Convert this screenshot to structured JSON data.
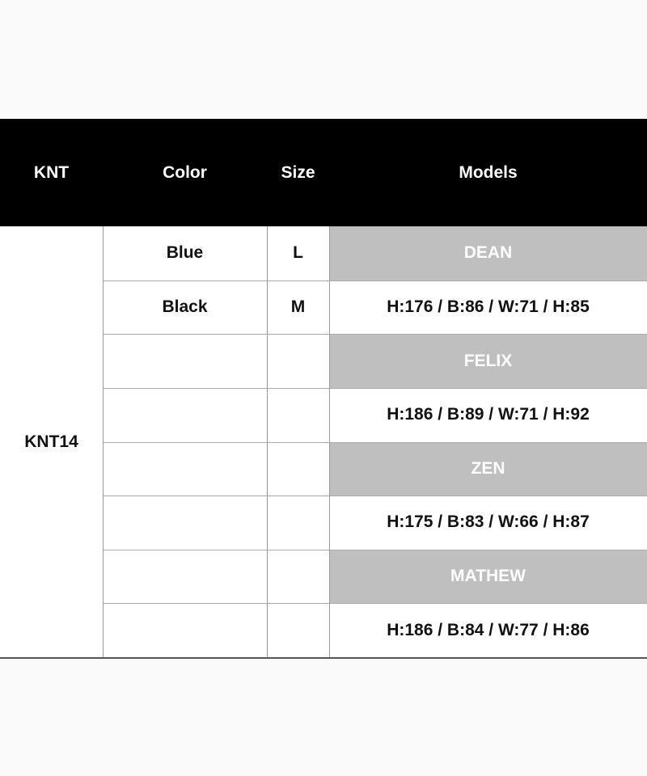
{
  "header": {
    "col1": "KNT",
    "col2": "Color",
    "col3": "Size",
    "col4": "Models"
  },
  "product_code": "KNT14",
  "variants": [
    {
      "color": "Blue",
      "size": "L"
    },
    {
      "color": "Black",
      "size": "M"
    }
  ],
  "models": [
    {
      "name": "DEAN",
      "measurements": "H:176 / B:86 / W:71 / H:85"
    },
    {
      "name": "FELIX",
      "measurements": "H:186 / B:89 / W:71 / H:92"
    },
    {
      "name": "ZEN",
      "measurements": "H:175 / B:83 / W:66 / H:87"
    },
    {
      "name": "MATHEW",
      "measurements": "H:186 / B:84 / W:77 / H:86"
    }
  ],
  "colors": {
    "header_bg": "#000000",
    "model_name_bg": "#bfbfbf",
    "page_bg": "#fafafa"
  }
}
